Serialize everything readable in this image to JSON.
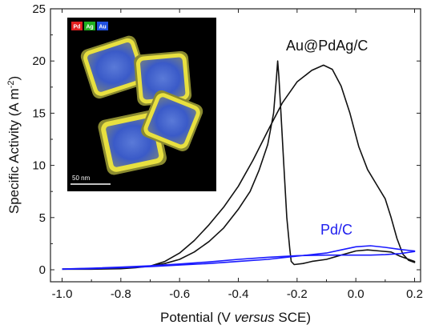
{
  "chart_data": {
    "type": "line",
    "xlabel_prefix": "Potential (V ",
    "xlabel_italic": "versus",
    "xlabel_suffix": " SCE)",
    "ylabel_text": "Specific Activity (A m",
    "ylabel_sup": "-2",
    "ylabel_close": ")",
    "xlim": [
      -1.0,
      0.2
    ],
    "ylim": [
      0,
      25
    ],
    "x_ticks": [
      "-1.0",
      "-0.8",
      "-0.6",
      "-0.4",
      "-0.2",
      "0.0",
      "0.2"
    ],
    "y_ticks": [
      "0",
      "5",
      "10",
      "15",
      "20",
      "25"
    ],
    "series": [
      {
        "name": "Au@PdAg/C",
        "color": "#111111",
        "points": [
          [
            -1.0,
            0.05
          ],
          [
            -0.9,
            0.05
          ],
          [
            -0.8,
            0.1
          ],
          [
            -0.75,
            0.2
          ],
          [
            -0.7,
            0.35
          ],
          [
            -0.65,
            0.8
          ],
          [
            -0.6,
            1.6
          ],
          [
            -0.55,
            2.8
          ],
          [
            -0.5,
            4.3
          ],
          [
            -0.45,
            6.0
          ],
          [
            -0.4,
            8.0
          ],
          [
            -0.35,
            10.5
          ],
          [
            -0.3,
            13.3
          ],
          [
            -0.25,
            16.0
          ],
          [
            -0.2,
            18.0
          ],
          [
            -0.15,
            19.1
          ],
          [
            -0.11,
            19.6
          ],
          [
            -0.08,
            19.2
          ],
          [
            -0.05,
            17.6
          ],
          [
            -0.02,
            15.0
          ],
          [
            0.01,
            11.8
          ],
          [
            0.04,
            9.6
          ],
          [
            0.07,
            8.2
          ],
          [
            0.1,
            6.8
          ],
          [
            0.12,
            5.0
          ],
          [
            0.14,
            3.0
          ],
          [
            0.16,
            1.5
          ],
          [
            0.18,
            0.9
          ],
          [
            0.2,
            0.7
          ],
          [
            0.2,
            0.8
          ],
          [
            0.18,
            1.0
          ],
          [
            0.15,
            1.3
          ],
          [
            0.12,
            1.7
          ],
          [
            0.08,
            1.8
          ],
          [
            0.04,
            1.9
          ],
          [
            0.0,
            1.8
          ],
          [
            -0.05,
            1.4
          ],
          [
            -0.1,
            1.0
          ],
          [
            -0.15,
            0.8
          ],
          [
            -0.18,
            0.6
          ],
          [
            -0.21,
            0.5
          ],
          [
            -0.22,
            0.8
          ],
          [
            -0.225,
            2.0
          ],
          [
            -0.235,
            5.0
          ],
          [
            -0.245,
            10.0
          ],
          [
            -0.255,
            15.0
          ],
          [
            -0.262,
            18.5
          ],
          [
            -0.266,
            20.0
          ],
          [
            -0.27,
            18.5
          ],
          [
            -0.28,
            15.0
          ],
          [
            -0.3,
            12.0
          ],
          [
            -0.33,
            9.5
          ],
          [
            -0.36,
            7.5
          ],
          [
            -0.4,
            5.8
          ],
          [
            -0.45,
            4.0
          ],
          [
            -0.5,
            2.7
          ],
          [
            -0.55,
            1.7
          ],
          [
            -0.6,
            1.0
          ],
          [
            -0.65,
            0.6
          ],
          [
            -0.7,
            0.35
          ],
          [
            -0.8,
            0.2
          ],
          [
            -0.9,
            0.12
          ],
          [
            -1.0,
            0.08
          ]
        ]
      },
      {
        "name": "Pd/C",
        "color": "#1a1aff",
        "points": [
          [
            -1.0,
            0.05
          ],
          [
            -0.9,
            0.1
          ],
          [
            -0.8,
            0.2
          ],
          [
            -0.7,
            0.3
          ],
          [
            -0.6,
            0.45
          ],
          [
            -0.5,
            0.6
          ],
          [
            -0.4,
            0.8
          ],
          [
            -0.3,
            1.0
          ],
          [
            -0.2,
            1.3
          ],
          [
            -0.1,
            1.6
          ],
          [
            -0.05,
            1.9
          ],
          [
            0.0,
            2.2
          ],
          [
            0.05,
            2.3
          ],
          [
            0.1,
            2.15
          ],
          [
            0.15,
            1.95
          ],
          [
            0.2,
            1.8
          ],
          [
            0.2,
            1.75
          ],
          [
            0.15,
            1.55
          ],
          [
            0.1,
            1.45
          ],
          [
            0.05,
            1.4
          ],
          [
            0.0,
            1.4
          ],
          [
            -0.1,
            1.4
          ],
          [
            -0.2,
            1.35
          ],
          [
            -0.3,
            1.2
          ],
          [
            -0.4,
            1.0
          ],
          [
            -0.5,
            0.75
          ],
          [
            -0.6,
            0.55
          ],
          [
            -0.7,
            0.38
          ],
          [
            -0.8,
            0.25
          ],
          [
            -0.9,
            0.15
          ],
          [
            -1.0,
            0.08
          ]
        ]
      }
    ],
    "annotations": {
      "au_label": "Au@PdAg/C",
      "pd_label": "Pd/C"
    }
  },
  "inset": {
    "tags": [
      {
        "text": "Pd",
        "color": "#e02020"
      },
      {
        "text": "Ag",
        "color": "#20b020"
      },
      {
        "text": "Au",
        "color": "#2050e0"
      }
    ],
    "scale_bar_label": "50 nm"
  }
}
